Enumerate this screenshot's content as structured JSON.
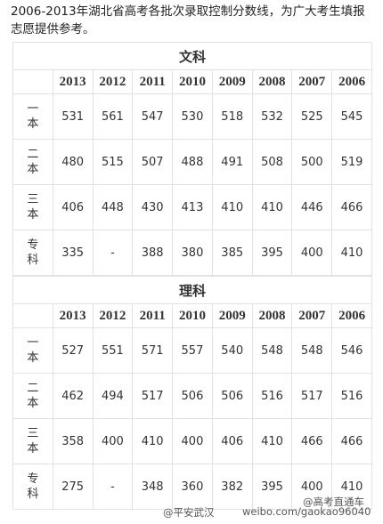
{
  "intro": "2006-2013年湖北省高考各批次录取控制分数线，为广大考生填报志愿提供参考。",
  "sections": [
    {
      "title": "文科",
      "years": [
        2013,
        2012,
        2011,
        2010,
        2009,
        2008,
        2007,
        2006
      ],
      "rows": [
        {
          "label": "一本",
          "values": [
            531,
            561,
            547,
            530,
            518,
            532,
            525,
            545
          ]
        },
        {
          "label": "二本",
          "values": [
            480,
            515,
            507,
            488,
            491,
            508,
            500,
            519
          ]
        },
        {
          "label": "三本",
          "values": [
            406,
            448,
            430,
            413,
            410,
            410,
            446,
            466
          ]
        },
        {
          "label": "专科",
          "values": [
            335,
            "-",
            388,
            380,
            385,
            395,
            400,
            410
          ]
        }
      ]
    },
    {
      "title": "理科",
      "years": [
        2013,
        2012,
        2011,
        2010,
        2009,
        2008,
        2007,
        2006
      ],
      "rows": [
        {
          "label": "一本",
          "values": [
            527,
            551,
            571,
            557,
            540,
            548,
            548,
            546
          ]
        },
        {
          "label": "二本",
          "values": [
            462,
            494,
            517,
            506,
            506,
            516,
            517,
            516
          ]
        },
        {
          "label": "三本",
          "values": [
            358,
            400,
            410,
            400,
            406,
            410,
            466,
            466
          ]
        },
        {
          "label": "专科",
          "values": [
            275,
            "-",
            348,
            360,
            382,
            395,
            400,
            410
          ]
        }
      ]
    }
  ],
  "watermark": {
    "account": "@平安武汉",
    "url": "weibo.com/gaokao96040",
    "source": "@高考直通车"
  }
}
